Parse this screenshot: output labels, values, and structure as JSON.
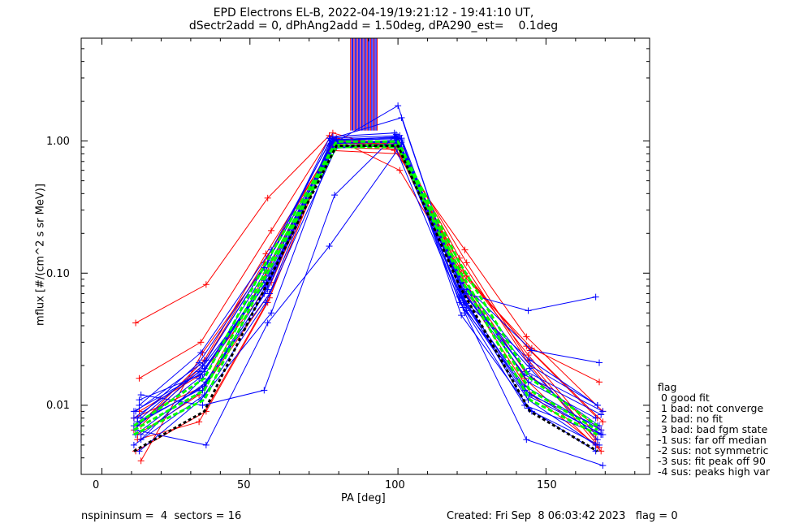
{
  "chart_data": {
    "type": "line",
    "title": "EPD Electrons EL-B, 2022-04-19/19:21:12 - 19:41:10 UT,",
    "subtitle": "dSectr2add = 0, dPhAng2add = 1.50deg, dPA290_est=    0.1deg",
    "xlabel": "PA [deg]",
    "ylabel": "mflux [#/(cm^2 s sr MeV)]",
    "xlim": [
      -7,
      185
    ],
    "ylim": [
      0.003,
      6
    ],
    "yscale": "log",
    "x_ticks": [
      "0",
      "50",
      "100",
      "150"
    ],
    "y_ticks": [
      "0.01",
      "0.10",
      "1.00"
    ],
    "legend_title": "flag",
    "legend": [
      " 0 good fit",
      " 1 bad: not converge",
      " 2 bad: no fit",
      " 3 bad: bad fgm state",
      "-1 sus: far off median",
      "-2 sus: not symmetric",
      "-3 sus: fit peak off 90",
      "-4 sus: peaks high var"
    ],
    "pa_bins": [
      12,
      34,
      56,
      78,
      100,
      122,
      144,
      168
    ],
    "series_colors": [
      "#0000ff",
      "#ff0000",
      "#00ff00",
      "#000000"
    ],
    "blue_curves": [
      [
        0.008,
        0.019,
        0.085,
        1.0,
        1.08,
        0.06,
        0.012,
        0.007
      ],
      [
        0.007,
        0.016,
        0.1,
        0.95,
        1.02,
        0.055,
        0.01,
        0.006
      ],
      [
        0.006,
        0.013,
        0.07,
        0.98,
        0.97,
        0.075,
        0.015,
        0.008
      ],
      [
        0.009,
        0.022,
        0.12,
        1.05,
        1.1,
        0.048,
        0.009,
        0.005
      ],
      [
        0.01,
        0.025,
        0.15,
        1.08,
        1.15,
        0.07,
        0.018,
        0.009
      ],
      [
        0.005,
        0.012,
        0.06,
        0.9,
        0.92,
        0.09,
        0.02,
        0.01
      ],
      [
        0.007,
        0.018,
        0.09,
        1.0,
        1.05,
        0.065,
        0.013,
        0.006
      ],
      [
        0.008,
        0.02,
        0.11,
        0.97,
        1.0,
        0.052,
        0.011,
        0.005
      ],
      [
        0.006,
        0.015,
        0.075,
        0.93,
        0.95,
        0.08,
        0.016,
        0.007
      ],
      [
        0.011,
        0.017,
        0.095,
        1.02,
        1.07,
        0.058,
        0.012,
        0.006
      ],
      [
        0.007,
        0.014,
        0.08,
        0.99,
        1.85,
        0.075,
        0.019,
        0.0055
      ],
      [
        0.008,
        0.021,
        0.13,
        1.04,
        1.5,
        0.062,
        0.014,
        0.0065
      ],
      [
        0.012,
        0.01,
        0.013,
        0.39,
        1.12,
        0.07,
        0.052,
        0.066
      ],
      [
        0.0065,
        0.005,
        0.042,
        0.16,
        0.9,
        0.085,
        0.026,
        0.021
      ],
      [
        0.0045,
        0.011,
        0.05,
        0.88,
        0.93,
        0.05,
        0.0055,
        0.0035
      ],
      [
        0.009,
        0.018,
        0.105,
        1.01,
        1.04,
        0.066,
        0.022,
        0.01
      ],
      [
        0.0075,
        0.013,
        0.07,
        0.96,
        0.98,
        0.072,
        0.017,
        0.0085
      ],
      [
        0.0055,
        0.016,
        0.088,
        1.03,
        1.06,
        0.059,
        0.0095,
        0.0045
      ]
    ],
    "red_curves": [
      [
        0.042,
        0.082,
        0.37,
        1.1,
        0.6,
        0.1,
        0.027,
        0.015
      ],
      [
        0.016,
        0.03,
        0.21,
        1.15,
        0.85,
        0.15,
        0.033,
        0.009
      ],
      [
        0.008,
        0.014,
        0.1,
        1.05,
        0.9,
        0.11,
        0.026,
        0.008
      ],
      [
        0.006,
        0.012,
        0.07,
        0.95,
        0.88,
        0.09,
        0.018,
        0.0065
      ],
      [
        0.007,
        0.02,
        0.12,
        1.0,
        0.95,
        0.12,
        0.022,
        0.0055
      ],
      [
        0.0045,
        0.009,
        0.06,
        0.85,
        0.8,
        0.08,
        0.012,
        0.0048
      ],
      [
        0.009,
        0.017,
        0.085,
        0.98,
        0.92,
        0.1,
        0.028,
        0.0075
      ],
      [
        0.0065,
        0.022,
        0.14,
        1.02,
        0.97,
        0.13,
        0.02,
        0.005
      ],
      [
        0.0055,
        0.0075,
        0.065,
        0.9,
        0.86,
        0.085,
        0.016,
        0.0045
      ],
      [
        0.0038,
        0.025,
        0.11,
        0.97,
        0.94,
        0.095,
        0.024,
        0.006
      ]
    ],
    "green_fits": [
      [
        0.0065,
        0.013,
        0.105,
        0.93,
        0.93,
        0.105,
        0.013,
        0.0065
      ],
      [
        0.007,
        0.016,
        0.12,
        0.99,
        0.99,
        0.12,
        0.016,
        0.007
      ],
      [
        0.006,
        0.011,
        0.095,
        0.9,
        0.9,
        0.095,
        0.011,
        0.006
      ]
    ],
    "black_median": [
      0.0045,
      0.009,
      0.08,
      0.92,
      0.92,
      0.08,
      0.009,
      0.0045
    ],
    "peak_spike_x_range": [
      84,
      93
    ]
  },
  "footer": {
    "left": "nspininsum =  4  sectors = 16",
    "right": "Created: Fri Sep  8 06:03:42 2023   flag = 0"
  }
}
